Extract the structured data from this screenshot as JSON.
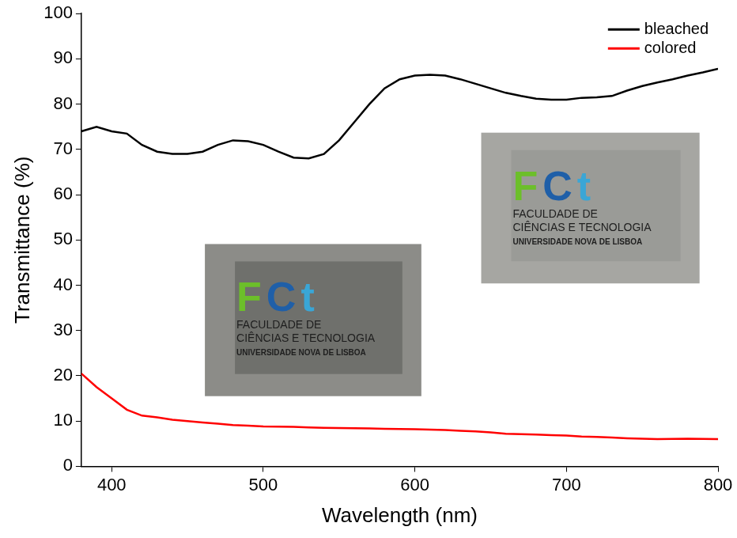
{
  "chart_data": {
    "type": "line",
    "x_label": "Wavelength (nm)",
    "y_label": "Transmittance (%)",
    "x": [
      380,
      390,
      400,
      410,
      420,
      430,
      440,
      450,
      460,
      470,
      480,
      490,
      500,
      510,
      520,
      530,
      540,
      550,
      560,
      570,
      580,
      590,
      600,
      610,
      620,
      630,
      640,
      650,
      660,
      670,
      680,
      690,
      700,
      710,
      720,
      730,
      740,
      750,
      760,
      770,
      780,
      790,
      800
    ],
    "series": [
      {
        "name": "bleached",
        "color": "#000000",
        "values": [
          74,
          75,
          74,
          73.5,
          71,
          69.5,
          69,
          69,
          69.5,
          71,
          72,
          71.8,
          71,
          69.5,
          68.2,
          68,
          69,
          72,
          76,
          80,
          83.5,
          85.5,
          86.3,
          86.5,
          86.3,
          85.5,
          84.5,
          83.5,
          82.5,
          81.8,
          81.2,
          81,
          81,
          81.4,
          81.5,
          81.8,
          83,
          84,
          84.8,
          85.5,
          86.3,
          87,
          87.8
        ]
      },
      {
        "name": "colored",
        "color": "#ff0000",
        "values": [
          20.5,
          17.5,
          15,
          12.5,
          11.2,
          10.8,
          10.3,
          10,
          9.7,
          9.4,
          9.1,
          9,
          8.8,
          8.75,
          8.7,
          8.6,
          8.5,
          8.45,
          8.4,
          8.35,
          8.3,
          8.25,
          8.2,
          8.1,
          8,
          7.85,
          7.7,
          7.5,
          7.2,
          7.1,
          7,
          6.9,
          6.8,
          6.6,
          6.5,
          6.35,
          6.2,
          6.1,
          6,
          6.05,
          6.1,
          6.05,
          6
        ]
      }
    ],
    "xlim": [
      380,
      800
    ],
    "xticks": [
      400,
      500,
      600,
      700,
      800
    ],
    "ylim": [
      0,
      100
    ],
    "yticks": [
      0,
      10,
      20,
      30,
      40,
      50,
      60,
      70,
      80,
      90,
      100
    ],
    "grid": false,
    "legend": "upper right",
    "annotations": [
      {
        "series": "colored",
        "logo": "FCt",
        "lines": [
          "FACULDADE DE",
          "CIÊNCIAS E TECNOLOGIA",
          "UNIVERSIDADE NOVA DE LISBOA"
        ]
      },
      {
        "series": "bleached",
        "logo": "FCt",
        "lines": [
          "FACULDADE DE",
          "CIÊNCIAS E TECNOLOGIA",
          "UNIVERSIDADE NOVA DE LISBOA"
        ]
      }
    ]
  }
}
